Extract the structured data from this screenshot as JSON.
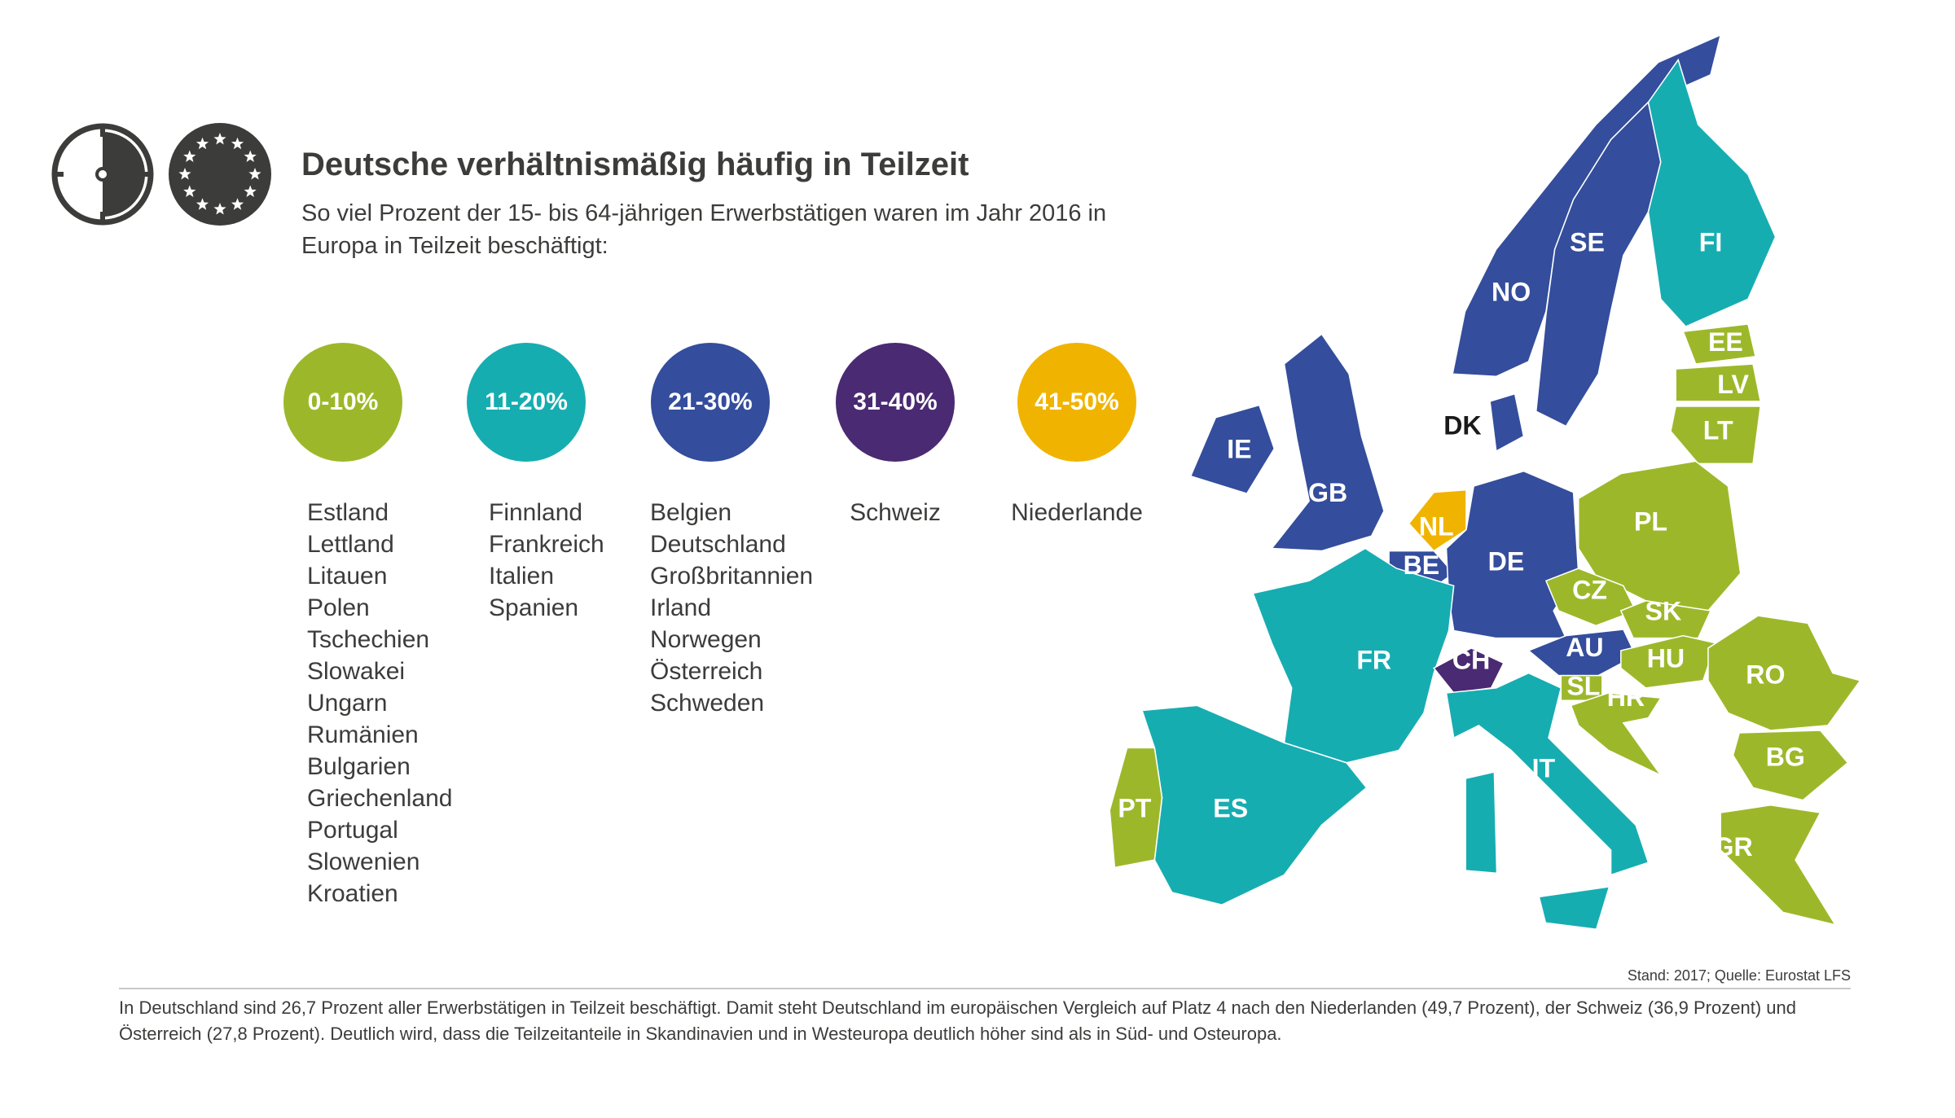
{
  "header": {
    "icons": [
      "half-clock-icon",
      "eu-stars-icon"
    ],
    "title": "Deutsche verhältnismäßig häufig in Teilzeit",
    "subtitle": "So viel Prozent der 15- bis 64-jährigen Erwerbstätigen waren im Jahr 2016 in Europa in Teilzeit beschäftigt:"
  },
  "legend": [
    {
      "range": "0-10%",
      "color": "#9cb82a",
      "countries": [
        "Estland",
        "Lettland",
        "Litauen",
        "Polen",
        "Tschechien",
        "Slowakei",
        "Ungarn",
        "Rumänien",
        "Bulgarien",
        "Griechenland",
        "Portugal",
        "Slowenien",
        "Kroatien"
      ]
    },
    {
      "range": "11-20%",
      "color": "#16adb1",
      "countries": [
        "Finnland",
        "Frankreich",
        "Italien",
        "Spanien"
      ]
    },
    {
      "range": "21-30%",
      "color": "#344d9c",
      "countries": [
        "Belgien",
        "Deutschland",
        "Großbritannien",
        "Irland",
        "Norwegen",
        "Österreich",
        "Schweden"
      ]
    },
    {
      "range": "31-40%",
      "color": "#4a2a72",
      "countries": [
        "Schweiz"
      ]
    },
    {
      "range": "41-50%",
      "color": "#f0b400",
      "countries": [
        "Niederlande"
      ]
    }
  ],
  "map": {
    "countries": [
      {
        "code": "NO",
        "class": "21-30%"
      },
      {
        "code": "SE",
        "class": "21-30%"
      },
      {
        "code": "FI",
        "class": "11-20%"
      },
      {
        "code": "EE",
        "class": "0-10%"
      },
      {
        "code": "LV",
        "class": "0-10%"
      },
      {
        "code": "LT",
        "class": "0-10%"
      },
      {
        "code": "DK",
        "class": ""
      },
      {
        "code": "IE",
        "class": "21-30%"
      },
      {
        "code": "GB",
        "class": "21-30%"
      },
      {
        "code": "NL",
        "class": "41-50%"
      },
      {
        "code": "BE",
        "class": "21-30%"
      },
      {
        "code": "DE",
        "class": "21-30%"
      },
      {
        "code": "PL",
        "class": "0-10%"
      },
      {
        "code": "CZ",
        "class": "0-10%"
      },
      {
        "code": "SK",
        "class": "0-10%"
      },
      {
        "code": "AU",
        "class": "21-30%"
      },
      {
        "code": "HU",
        "class": "0-10%"
      },
      {
        "code": "SL",
        "class": "0-10%"
      },
      {
        "code": "HR",
        "class": "0-10%"
      },
      {
        "code": "RO",
        "class": "0-10%"
      },
      {
        "code": "BG",
        "class": "0-10%"
      },
      {
        "code": "GR",
        "class": "0-10%"
      },
      {
        "code": "FR",
        "class": "11-20%"
      },
      {
        "code": "CH",
        "class": "31-40%"
      },
      {
        "code": "IT",
        "class": "11-20%"
      },
      {
        "code": "ES",
        "class": "11-20%"
      },
      {
        "code": "PT",
        "class": "0-10%"
      }
    ]
  },
  "source": "Stand: 2017; Quelle: Eurostat LFS",
  "footer": "In Deutschland sind 26,7 Prozent aller Erwerbstätigen in Teilzeit beschäftigt. Damit steht Deutschland im europäischen Vergleich auf Platz 4 nach den Niederlanden (49,7 Prozent), der Schweiz (36,9 Prozent) und Österreich (27,8 Prozent). Deutlich wird, dass die Teilzeitanteile in Skandinavien und in Westeuropa deutlich höher sind als in Süd- und Osteuropa."
}
